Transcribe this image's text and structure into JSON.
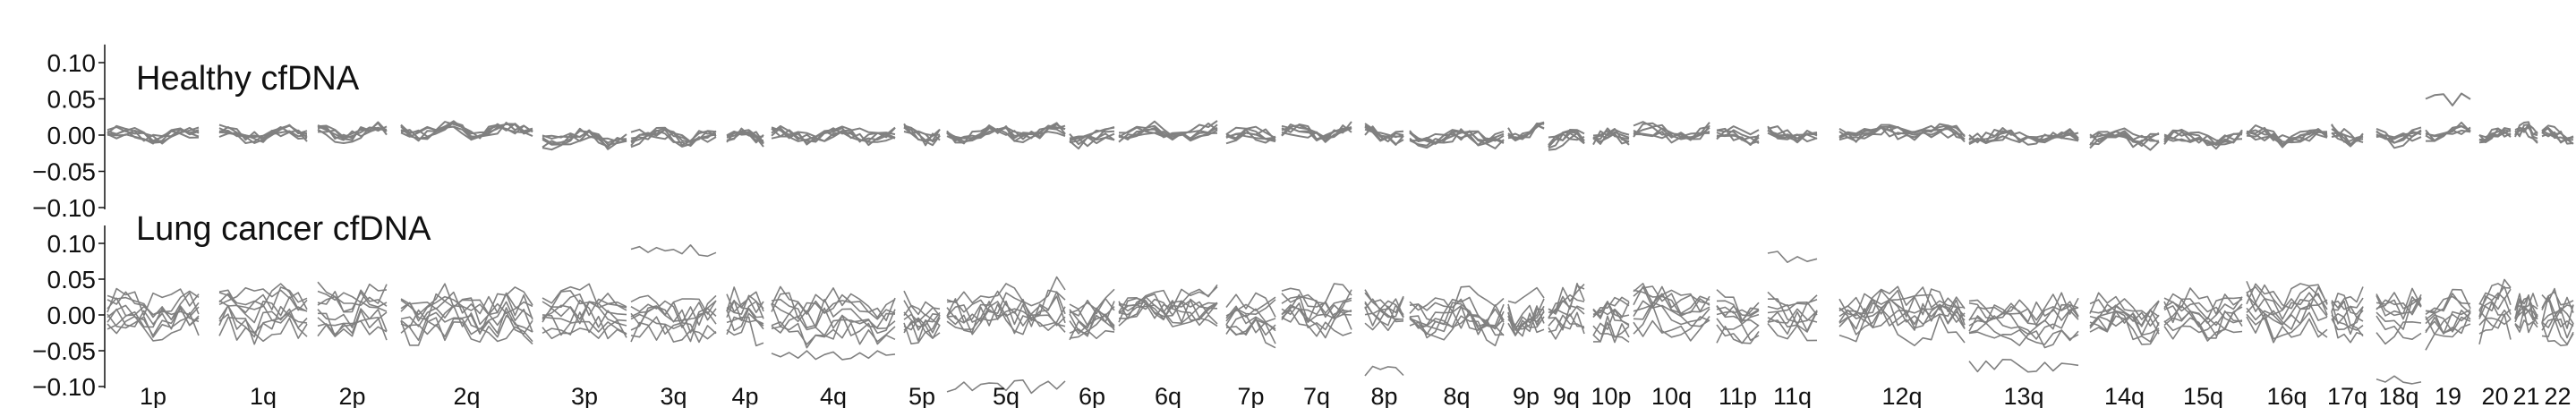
{
  "chart_data": {
    "type": "line",
    "x_arms": [
      "1p",
      "1q",
      "2p",
      "2q",
      "3p",
      "3q",
      "4p",
      "4q",
      "5p",
      "5q",
      "6p",
      "6q",
      "7p",
      "7q",
      "8p",
      "8q",
      "9p",
      "9q",
      "10p",
      "10q",
      "11p",
      "11q",
      "12q",
      "13q",
      "14q",
      "15q",
      "16q",
      "17q",
      "18q",
      "19",
      "20",
      "21",
      "22"
    ],
    "y_ticks": [
      "0.10",
      "0.05",
      "0.00",
      "−0.05",
      "−0.10"
    ],
    "y_tick_values": [
      0.1,
      0.05,
      0.0,
      -0.05,
      -0.1
    ],
    "ylim": [
      -0.1,
      0.12
    ],
    "line_color": "#808080",
    "panels": [
      {
        "title": "Healthy cfDNA",
        "n_series": 6,
        "spread": 0.004,
        "noise": 0.008,
        "outlier_arms": {
          "19": 0.05
        }
      },
      {
        "title": "Lung cancer cfDNA",
        "n_series": 9,
        "spread": 0.025,
        "noise": 0.018,
        "outlier_arms": {
          "3q": 0.09,
          "11q": 0.08,
          "5q": -0.1,
          "8p": -0.08,
          "18q": -0.09,
          "4q": -0.06,
          "13q": -0.07
        }
      }
    ]
  }
}
